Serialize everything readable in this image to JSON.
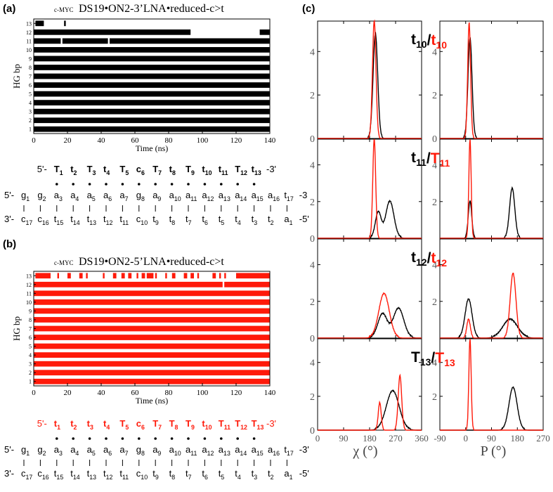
{
  "panel_labels": {
    "a": "(a)",
    "b": "(b)",
    "c": "(c)"
  },
  "panel_a": {
    "title_prefix": "c-MYC",
    "title": "DS19•ON2-3’LNA•reduced-c>t",
    "color": "#000000",
    "ylabel": "HG bp",
    "xlabel": "Time (ns)",
    "xticks": [
      "0",
      "20",
      "40",
      "60",
      "80",
      "100",
      "120",
      "140"
    ],
    "yticks": [
      "1",
      "2",
      "3",
      "4",
      "5",
      "6",
      "7",
      "8",
      "9",
      "10",
      "11",
      "12",
      "13"
    ],
    "chart_data": {
      "type": "heatmap",
      "x_range": [
        0,
        140
      ],
      "rows": [
        {
          "bp": 1,
          "segments": [
            [
              0,
              140
            ]
          ]
        },
        {
          "bp": 2,
          "segments": [
            [
              0,
              140
            ]
          ]
        },
        {
          "bp": 3,
          "segments": [
            [
              0,
              140
            ]
          ]
        },
        {
          "bp": 4,
          "segments": [
            [
              0,
              140
            ]
          ]
        },
        {
          "bp": 5,
          "segments": [
            [
              0,
              140
            ]
          ]
        },
        {
          "bp": 6,
          "segments": [
            [
              0,
              140
            ]
          ]
        },
        {
          "bp": 7,
          "segments": [
            [
              0,
              140
            ]
          ]
        },
        {
          "bp": 8,
          "segments": [
            [
              0,
              140
            ]
          ]
        },
        {
          "bp": 9,
          "segments": [
            [
              0,
              140
            ]
          ]
        },
        {
          "bp": 10,
          "segments": [
            [
              0,
              140
            ]
          ]
        },
        {
          "bp": 11,
          "segments": [
            [
              0,
              16
            ],
            [
              17,
              44
            ],
            [
              45,
              140
            ]
          ]
        },
        {
          "bp": 12,
          "segments": [
            [
              0,
              93
            ],
            [
              134,
              140
            ]
          ]
        },
        {
          "bp": 13,
          "segments": [
            [
              1,
              6
            ],
            [
              18,
              19
            ]
          ]
        }
      ]
    },
    "seq_top": {
      "prefix": "5'-",
      "suffix": "-3'",
      "color": "#000000",
      "letters": [
        "T",
        "t",
        "T",
        "t",
        "T",
        "c",
        "T",
        "t",
        "T",
        "t",
        "t",
        "T",
        "t"
      ],
      "subs": [
        "1",
        "2",
        "3",
        "4",
        "5",
        "6",
        "7",
        "8",
        "9",
        "10",
        "11",
        "12",
        "13"
      ],
      "bold": [
        true,
        true,
        true,
        true,
        true,
        true,
        true,
        true,
        true,
        true,
        true,
        true,
        true
      ]
    },
    "seq_mid": {
      "prefix": "5'-",
      "suffix": "-3",
      "letters": [
        "g",
        "g",
        "a",
        "a",
        "a",
        "a",
        "a",
        "g",
        "a",
        "a",
        "a",
        "a",
        "a",
        "a",
        "a",
        "a",
        "t"
      ],
      "subs": [
        "1",
        "2",
        "3",
        "4",
        "5",
        "6",
        "7",
        "8",
        "9",
        "10",
        "11",
        "12",
        "13",
        "14",
        "15",
        "16",
        "17"
      ]
    },
    "seq_bot": {
      "prefix": "3'-",
      "suffix": "-5'",
      "letters": [
        "c",
        "c",
        "t",
        "t",
        "t",
        "t",
        "t",
        "c",
        "t",
        "t",
        "t",
        "t",
        "t",
        "t",
        "t",
        "t",
        "a"
      ],
      "subs": [
        "17",
        "16",
        "15",
        "14",
        "13",
        "12",
        "11",
        "10",
        "9",
        "8",
        "7",
        "6",
        "5",
        "4",
        "3",
        "2",
        "1"
      ]
    }
  },
  "panel_b": {
    "title_prefix": "c-MYC",
    "title": "DS19•ON2-5’LNA•reduced-c>t",
    "color": "#ff1a0a",
    "ylabel": "HG bp",
    "xlabel": "Time (ns)",
    "xticks": [
      "0",
      "20",
      "40",
      "60",
      "80",
      "100",
      "120",
      "140"
    ],
    "yticks": [
      "1",
      "2",
      "3",
      "4",
      "5",
      "6",
      "7",
      "8",
      "9",
      "10",
      "11",
      "12",
      "13"
    ],
    "chart_data": {
      "type": "heatmap",
      "x_range": [
        0,
        140
      ],
      "rows": [
        {
          "bp": 1,
          "segments": [
            [
              0,
              140
            ]
          ]
        },
        {
          "bp": 2,
          "segments": [
            [
              0,
              140
            ]
          ]
        },
        {
          "bp": 3,
          "segments": [
            [
              0,
              140
            ]
          ]
        },
        {
          "bp": 4,
          "segments": [
            [
              0,
              140
            ]
          ]
        },
        {
          "bp": 5,
          "segments": [
            [
              0,
              140
            ]
          ]
        },
        {
          "bp": 6,
          "segments": [
            [
              0,
              140
            ]
          ]
        },
        {
          "bp": 7,
          "segments": [
            [
              0,
              140
            ]
          ]
        },
        {
          "bp": 8,
          "segments": [
            [
              0,
              140
            ]
          ]
        },
        {
          "bp": 9,
          "segments": [
            [
              0,
              140
            ]
          ]
        },
        {
          "bp": 10,
          "segments": [
            [
              0,
              140
            ]
          ]
        },
        {
          "bp": 11,
          "segments": [
            [
              0,
              140
            ]
          ]
        },
        {
          "bp": 12,
          "segments": [
            [
              0,
              112
            ],
            [
              113,
              140
            ]
          ]
        },
        {
          "bp": 13,
          "segments": [
            [
              1,
              10
            ],
            [
              14,
              15
            ],
            [
              20,
              22
            ],
            [
              27,
              29
            ],
            [
              31,
              32
            ],
            [
              41,
              42
            ],
            [
              47,
              49
            ],
            [
              52,
              54
            ],
            [
              56,
              58
            ],
            [
              61,
              62
            ],
            [
              64,
              66
            ],
            [
              67,
              71
            ],
            [
              72,
              73
            ],
            [
              78,
              79
            ],
            [
              82,
              84
            ],
            [
              89,
              91
            ],
            [
              93,
              95
            ],
            [
              97,
              98
            ],
            [
              106,
              108
            ],
            [
              110,
              111
            ],
            [
              113,
              114
            ],
            [
              120,
              140
            ]
          ]
        }
      ]
    },
    "seq_top": {
      "prefix": "5'-",
      "suffix": "-3'",
      "color": "#ff1a0a",
      "letters": [
        "t",
        "t",
        "t",
        "t",
        "T",
        "c",
        "T",
        "T",
        "T",
        "t",
        "T",
        "T",
        "T"
      ],
      "subs": [
        "1",
        "2",
        "3",
        "4",
        "5",
        "6",
        "7",
        "8",
        "9",
        "10",
        "11",
        "12",
        "13"
      ],
      "bold": [
        true,
        true,
        true,
        true,
        true,
        true,
        true,
        true,
        true,
        true,
        true,
        true,
        true
      ]
    },
    "seq_mid": {
      "prefix": "5'-",
      "suffix": "-3'",
      "letters": [
        "g",
        "g",
        "a",
        "a",
        "a",
        "a",
        "a",
        "g",
        "a",
        "a",
        "a",
        "a",
        "a",
        "a",
        "a",
        "a",
        "t"
      ],
      "subs": [
        "1",
        "2",
        "3",
        "4",
        "5",
        "6",
        "7",
        "8",
        "9",
        "10",
        "11",
        "12",
        "13",
        "14",
        "15",
        "16",
        "17"
      ]
    },
    "seq_bot": {
      "prefix": "3'-",
      "suffix": "-5'",
      "letters": [
        "c",
        "c",
        "t",
        "t",
        "t",
        "t",
        "t",
        "c",
        "t",
        "t",
        "t",
        "t",
        "t",
        "t",
        "t",
        "t",
        "a"
      ],
      "subs": [
        "17",
        "16",
        "15",
        "14",
        "13",
        "12",
        "11",
        "10",
        "9",
        "8",
        "7",
        "6",
        "5",
        "4",
        "3",
        "2",
        "1"
      ]
    }
  },
  "panel_c": {
    "chi_xlabel": "χ (°)",
    "p_xlabel": "P (°)",
    "chi_xticks": [
      "0",
      "90",
      "180",
      "270",
      "360"
    ],
    "p_xticks": [
      "-90",
      "0",
      "90",
      "180",
      "270"
    ],
    "yticks": [
      "0",
      "2",
      "4"
    ],
    "rows": [
      {
        "label": [
          {
            "t": "t",
            "s": "10",
            "c": "#000000"
          },
          {
            "t": "/",
            "s": "",
            "c": "#000000"
          },
          {
            "t": "t",
            "s": "10",
            "c": "#ff1a0a"
          }
        ]
      },
      {
        "label": [
          {
            "t": "t",
            "s": "11",
            "c": "#000000"
          },
          {
            "t": "/",
            "s": "",
            "c": "#000000"
          },
          {
            "t": "T",
            "s": "11",
            "c": "#ff1a0a"
          }
        ]
      },
      {
        "label": [
          {
            "t": "t",
            "s": "12",
            "c": "#000000"
          },
          {
            "t": "/",
            "s": "",
            "c": "#000000"
          },
          {
            "t": "t",
            "s": "12",
            "c": "#ff1a0a"
          }
        ]
      },
      {
        "label": [
          {
            "t": "T",
            "s": "13",
            "c": "#000000"
          },
          {
            "t": "/",
            "s": "",
            "c": "#000000"
          },
          {
            "t": "T",
            "s": "13",
            "c": "#ff1a0a"
          }
        ]
      }
    ],
    "chart_data": {
      "type": "line",
      "chi_xlim": [
        0,
        360
      ],
      "p_xlim": [
        -90,
        270
      ],
      "ylim": [
        0,
        5.4
      ],
      "colors": {
        "black": "#000000",
        "red": "#ff1a0a"
      },
      "peaks": [
        {
          "row": 1,
          "chi_black": [
            [
              200,
              8,
              4.8
            ]
          ],
          "chi_red": [
            [
              196,
              6,
              5.4
            ]
          ],
          "p_black": [
            [
              15,
              7,
              4.6
            ]
          ],
          "p_red": [
            [
              12,
              5,
              5.3
            ]
          ]
        },
        {
          "row": 2,
          "chi_black": [
            [
              210,
              10,
              1.4
            ],
            [
              250,
              14,
              2.0
            ]
          ],
          "chi_red": [
            [
              196,
              5,
              5.4
            ]
          ],
          "p_black": [
            [
              15,
              6,
              2.0
            ],
            [
              162,
              9,
              2.7
            ]
          ],
          "p_red": [
            [
              15,
              4,
              5.4
            ]
          ]
        },
        {
          "row": 3,
          "chi_black": [
            [
              225,
              16,
              1.3
            ],
            [
              280,
              18,
              1.6
            ]
          ],
          "chi_red": [
            [
              230,
              18,
              2.4
            ]
          ],
          "p_black": [
            [
              10,
              12,
              2.1
            ],
            [
              155,
              25,
              1.0
            ]
          ],
          "p_red": [
            [
              10,
              6,
              1.0
            ],
            [
              165,
              10,
              3.5
            ]
          ]
        },
        {
          "row": 4,
          "chi_black": [
            [
              260,
              22,
              2.3
            ]
          ],
          "chi_red": [
            [
              215,
              5,
              1.6
            ],
            [
              285,
              6,
              3.2
            ]
          ],
          "p_black": [
            [
              165,
              14,
              2.5
            ]
          ],
          "p_red": [
            [
              15,
              4,
              5.4
            ]
          ]
        }
      ]
    }
  }
}
